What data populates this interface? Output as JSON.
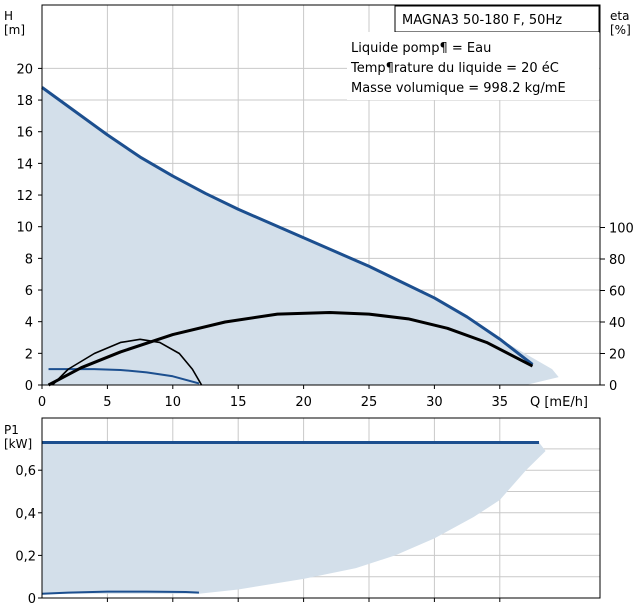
{
  "chart_data": [
    {
      "type": "line",
      "title": "MAGNA3 50-180 F, 50Hz",
      "annotations": [
        "Liquide pomp¶ = Eau",
        "Temp¶rature du liquide = 20 éC",
        "Masse volumique = 998.2 kg/mE"
      ],
      "y_axis_label_line1": "H",
      "y_axis_label_line2": "[m]",
      "y2_axis_label_line1": "eta",
      "y2_axis_label_line2": "[%]",
      "x_axis_label": "Q  [mE/h]",
      "xlim": [
        0,
        39
      ],
      "ylim": [
        0,
        22
      ],
      "y2lim": [
        0,
        100
      ],
      "x_ticks": [
        "0",
        "5",
        "10",
        "15",
        "20",
        "25",
        "30",
        "35"
      ],
      "y_ticks": [
        "0",
        "2",
        "4",
        "6",
        "8",
        "10",
        "12",
        "14",
        "16",
        "18",
        "20"
      ],
      "y2_ticks": [
        "0",
        "20",
        "40",
        "60",
        "80",
        "100"
      ],
      "grid": true,
      "area_color": "#d3dfea",
      "series": [
        {
          "axis": "H",
          "color": "#1c4f8f",
          "x": [
            0,
            2.5,
            5,
            7.5,
            10,
            12.5,
            15,
            17.5,
            20,
            22.5,
            25,
            27.5,
            30,
            32.5,
            35,
            37.5
          ],
          "values": [
            18.8,
            17.3,
            15.8,
            14.4,
            13.2,
            12.1,
            11.1,
            10.2,
            9.3,
            8.4,
            7.5,
            6.5,
            5.5,
            4.3,
            2.9,
            1.3
          ]
        },
        {
          "axis": "H",
          "color": "#1c4f8f",
          "x": [
            0.5,
            2,
            4,
            6,
            8,
            10,
            12
          ],
          "values": [
            1.0,
            1.0,
            1.0,
            0.95,
            0.8,
            0.55,
            0.1
          ]
        },
        {
          "axis": "eta",
          "color": "#000000",
          "x": [
            0.5,
            3,
            6,
            10,
            14,
            18,
            22,
            25,
            28,
            31,
            34,
            37.5
          ],
          "values": [
            0,
            11,
            21,
            32,
            40,
            45,
            46,
            45,
            42,
            36,
            27,
            12
          ]
        },
        {
          "axis": "eta",
          "color": "#000000",
          "x": [
            0.8,
            2,
            4,
            6,
            7.5,
            9,
            10.5,
            11.5,
            12.2
          ],
          "values": [
            0,
            10,
            20,
            27,
            29,
            27,
            20,
            10,
            0
          ]
        }
      ],
      "area": {
        "x": [
          0,
          5,
          10,
          15,
          20,
          25,
          30,
          35,
          39,
          39.5,
          37,
          33,
          28,
          20,
          14,
          10,
          5,
          0
        ],
        "values": [
          18.8,
          15.8,
          13.2,
          11.1,
          9.3,
          7.5,
          5.5,
          2.9,
          1.0,
          0.5,
          0.0,
          0.0,
          0.0,
          0.0,
          0.0,
          0.0,
          0.0,
          0.0
        ]
      }
    },
    {
      "type": "line",
      "y_axis_label_line1": "P1",
      "y_axis_label_line2": "[kW]",
      "xlim": [
        0,
        39
      ],
      "ylim": [
        0,
        0.75
      ],
      "y_ticks": [
        "0",
        "0,2",
        "0,4",
        "0,6"
      ],
      "grid": true,
      "area_color": "#d3dfea",
      "series": [
        {
          "color": "#1c4f8f",
          "x": [
            0,
            38
          ],
          "values": [
            0.73,
            0.73
          ]
        },
        {
          "color": "#1c4f8f",
          "x": [
            0,
            2,
            5,
            8,
            11,
            12
          ],
          "values": [
            0.02,
            0.025,
            0.03,
            0.03,
            0.028,
            0.025
          ]
        }
      ],
      "area": {
        "x": [
          0,
          38,
          38.5,
          37,
          36,
          35,
          33,
          30,
          27,
          24,
          20,
          15,
          12,
          0
        ],
        "values": [
          0.73,
          0.73,
          0.69,
          0.6,
          0.53,
          0.46,
          0.38,
          0.28,
          0.2,
          0.14,
          0.09,
          0.04,
          0.02,
          0.02
        ]
      }
    }
  ]
}
